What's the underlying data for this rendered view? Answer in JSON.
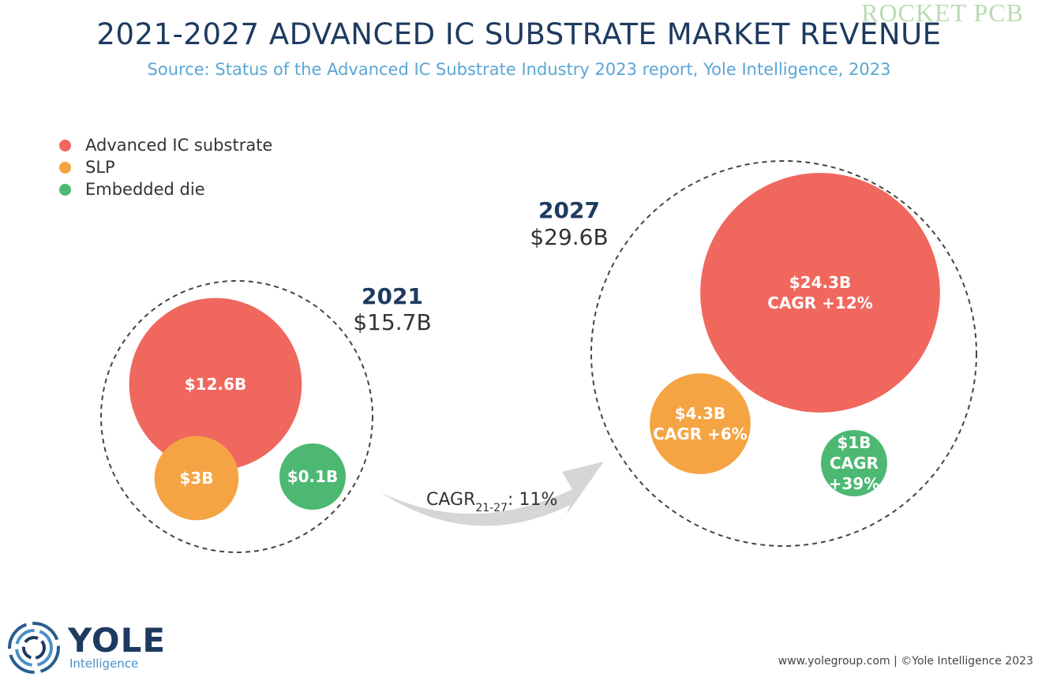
{
  "header": {
    "title": "2021-2027 ADVANCED IC SUBSTRATE MARKET REVENUE",
    "subtitle": "Source: Status of the Advanced IC Substrate Industry 2023 report, Yole Intelligence, 2023",
    "watermark": "ROCKET PCB"
  },
  "chart_data": {
    "type": "bubble",
    "title": "2021-2027 ADVANCED IC SUBSTRATE MARKET REVENUE",
    "legend": {
      "placement": "top-left",
      "entries": [
        {
          "name": "Advanced IC substrate",
          "color": "#f0675e"
        },
        {
          "name": "SLP",
          "color": "#f5a443"
        },
        {
          "name": "Embedded die",
          "color": "#4cb872"
        }
      ]
    },
    "groups": [
      {
        "year": "2021",
        "total": "$15.7B",
        "total_value": 15.7,
        "bubbles": [
          {
            "series": "Advanced IC substrate",
            "value": 12.6,
            "label": "$12.6B",
            "cagr": ""
          },
          {
            "series": "SLP",
            "value": 3,
            "label": "$3B",
            "cagr": ""
          },
          {
            "series": "Embedded die",
            "value": 0.1,
            "label": "$0.1B",
            "cagr": ""
          }
        ]
      },
      {
        "year": "2027",
        "total": "$29.6B",
        "total_value": 29.6,
        "bubbles": [
          {
            "series": "Advanced IC substrate",
            "value": 24.3,
            "label": "$24.3B",
            "cagr": "CAGR +12%"
          },
          {
            "series": "SLP",
            "value": 4.3,
            "label": "$4.3B",
            "cagr": "CAGR +6%"
          },
          {
            "series": "Embedded die",
            "value": 1,
            "label": "$1B",
            "cagr_line1": "CAGR",
            "cagr_line2": "+39%"
          }
        ]
      }
    ],
    "arrow": {
      "label_main": "CAGR",
      "label_sub": "21-27",
      "label_value": ": 11%",
      "color": "#d6d6d6"
    }
  },
  "footer": {
    "logo_name": "YOLE",
    "logo_sub": "Intelligence",
    "credit": "www.yolegroup.com | ©Yole Intelligence 2023"
  }
}
